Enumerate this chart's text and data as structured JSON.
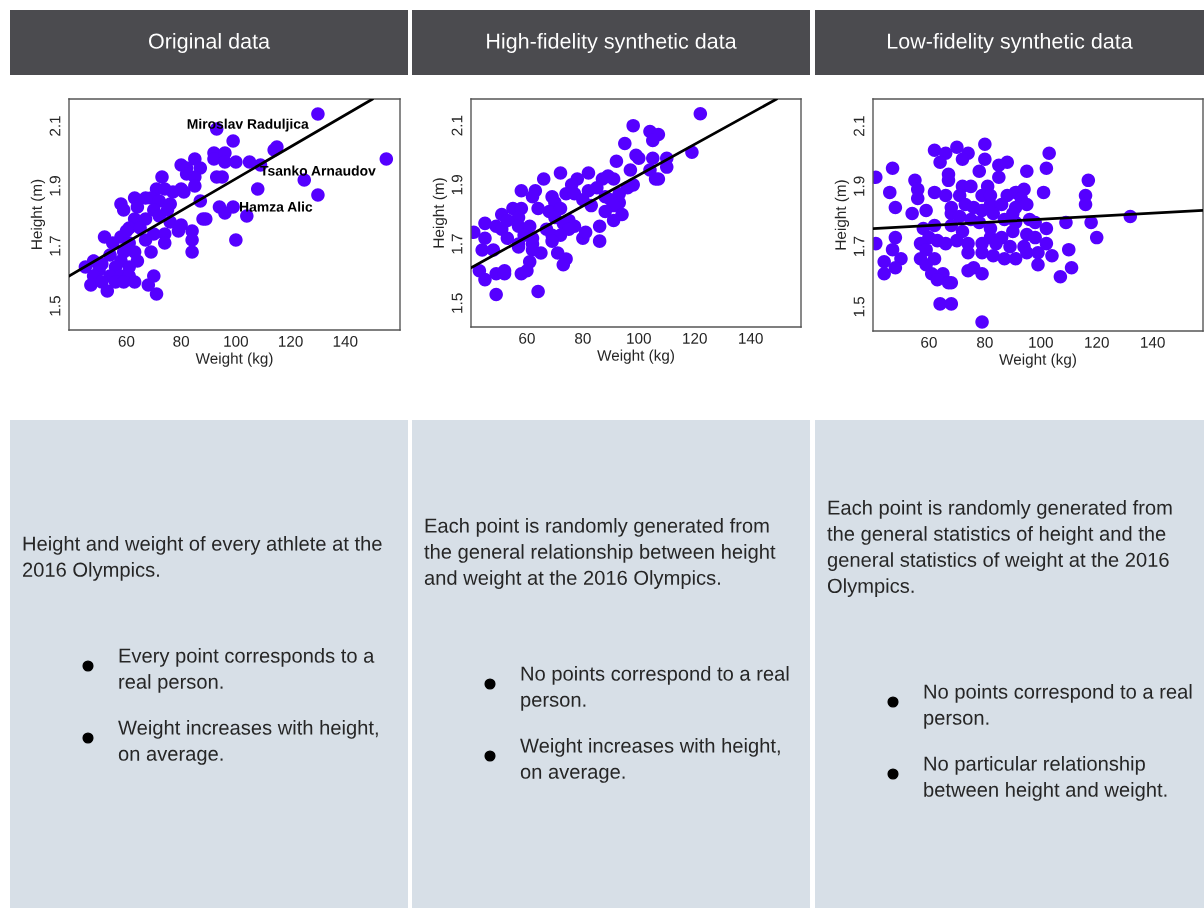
{
  "chart_data": [
    {
      "type": "scatter",
      "title": "Original data",
      "xlabel": "Weight (kg)",
      "ylabel": "Height (m)",
      "xlim": [
        39,
        160
      ],
      "ylim": [
        1.42,
        2.19
      ],
      "xticks": [
        60,
        80,
        100,
        120,
        140
      ],
      "yticks": [
        1.5,
        1.7,
        1.9,
        2.1
      ],
      "series": [
        {
          "marker": "circle",
          "color": "#5500ff",
          "x": [
            130,
            93,
            99,
            115,
            114,
            92,
            92,
            96,
            85,
            96,
            100,
            105,
            109,
            155,
            80,
            82,
            87,
            93,
            82,
            85,
            95,
            73,
            125,
            108,
            130,
            85,
            80,
            71,
            74,
            77,
            81,
            63,
            67,
            69,
            72,
            76,
            58,
            59,
            64,
            70,
            75,
            87,
            94,
            99,
            96,
            104,
            88,
            89,
            67,
            72,
            76,
            80,
            63,
            61,
            65,
            52,
            58,
            60,
            70,
            74,
            79,
            84,
            84,
            100,
            55,
            61,
            67,
            74,
            59,
            63,
            69,
            84,
            48,
            51,
            54,
            58,
            64,
            45,
            50,
            56,
            61,
            48,
            54,
            58,
            61,
            70,
            47,
            51,
            56,
            59,
            63,
            68,
            53,
            71
          ],
          "values": [
            2.14,
            2.09,
            2.05,
            2.03,
            2.02,
            2.01,
            1.99,
            2.01,
            1.99,
            1.98,
            1.98,
            1.98,
            1.97,
            1.99,
            1.97,
            1.96,
            1.96,
            1.93,
            1.94,
            1.93,
            1.93,
            1.93,
            1.92,
            1.89,
            1.87,
            1.9,
            1.89,
            1.89,
            1.89,
            1.88,
            1.88,
            1.86,
            1.86,
            1.86,
            1.85,
            1.84,
            1.84,
            1.82,
            1.83,
            1.82,
            1.82,
            1.85,
            1.83,
            1.83,
            1.81,
            1.8,
            1.79,
            1.79,
            1.79,
            1.8,
            1.78,
            1.77,
            1.79,
            1.76,
            1.76,
            1.73,
            1.73,
            1.75,
            1.74,
            1.74,
            1.75,
            1.75,
            1.72,
            1.72,
            1.71,
            1.71,
            1.72,
            1.71,
            1.68,
            1.68,
            1.68,
            1.68,
            1.65,
            1.64,
            1.67,
            1.65,
            1.65,
            1.63,
            1.62,
            1.63,
            1.63,
            1.6,
            1.6,
            1.6,
            1.6,
            1.6,
            1.57,
            1.58,
            1.58,
            1.58,
            1.58,
            1.57,
            1.55,
            1.54
          ]
        },
        {
          "type": "line",
          "color": "#000000",
          "x": [
            39,
            150
          ],
          "values": [
            1.6,
            2.19
          ]
        }
      ],
      "annotations": [
        "Miroslav Raduljica",
        "Tsanko Arnaudov",
        "Hamza Alic",
        "Height and weight of every athlete at the 2016 Olympics.",
        "Every point corresponds to a real person.",
        "Weight increases with height, on average."
      ]
    },
    {
      "type": "scatter",
      "title": "High-fidelity synthetic data",
      "xlabel": "Weight (kg)",
      "ylabel": "Height (m)",
      "xlim": [
        40,
        158
      ],
      "ylim": [
        1.42,
        2.19
      ],
      "xticks": [
        60,
        80,
        100,
        120,
        140
      ],
      "yticks": [
        1.5,
        1.7,
        1.9,
        2.1
      ],
      "series": [
        {
          "marker": "circle",
          "color": "#5500ff",
          "x": [
            122,
            98,
            104,
            107,
            105,
            95,
            119,
            99,
            100,
            105,
            110,
            92,
            110,
            97,
            104,
            72,
            82,
            66,
            78,
            87,
            89,
            91,
            106,
            107,
            76,
            98,
            96,
            58,
            63,
            82,
            85,
            74,
            77,
            93,
            62,
            69,
            80,
            88,
            90,
            93,
            70,
            83,
            55,
            58,
            64,
            68,
            72,
            91,
            88,
            51,
            57,
            53,
            70,
            75,
            94,
            91,
            49,
            45,
            57,
            61,
            73,
            77,
            41,
            51,
            67,
            75,
            86,
            53,
            59,
            62,
            69,
            72,
            80,
            81,
            45,
            57,
            62,
            69,
            86,
            44,
            48,
            57,
            62,
            65,
            71,
            74,
            61,
            73,
            43,
            52,
            49,
            52,
            58,
            60,
            45,
            49,
            64
          ],
          "values": [
            2.14,
            2.1,
            2.08,
            2.07,
            2.05,
            2.04,
            2.01,
            2.0,
            1.99,
            1.99,
            1.99,
            1.98,
            1.96,
            1.95,
            1.95,
            1.94,
            1.94,
            1.92,
            1.92,
            1.92,
            1.93,
            1.92,
            1.92,
            1.92,
            1.9,
            1.9,
            1.89,
            1.88,
            1.88,
            1.88,
            1.89,
            1.87,
            1.87,
            1.87,
            1.86,
            1.86,
            1.85,
            1.86,
            1.85,
            1.84,
            1.84,
            1.83,
            1.82,
            1.82,
            1.82,
            1.81,
            1.82,
            1.83,
            1.81,
            1.8,
            1.79,
            1.78,
            1.79,
            1.78,
            1.8,
            1.78,
            1.76,
            1.77,
            1.76,
            1.76,
            1.77,
            1.76,
            1.74,
            1.75,
            1.75,
            1.75,
            1.76,
            1.72,
            1.73,
            1.72,
            1.73,
            1.73,
            1.72,
            1.74,
            1.72,
            1.7,
            1.7,
            1.71,
            1.71,
            1.68,
            1.68,
            1.69,
            1.68,
            1.67,
            1.67,
            1.65,
            1.64,
            1.63,
            1.61,
            1.61,
            1.6,
            1.6,
            1.6,
            1.61,
            1.58,
            1.53,
            1.54
          ]
        },
        {
          "type": "line",
          "color": "#000000",
          "x": [
            40,
            149.3
          ],
          "values": [
            1.62,
            2.19
          ]
        }
      ],
      "annotations": [
        "Each point is randomly generated from the general relationship between height and weight at the 2016 Olympics.",
        "No points correspond to a real person.",
        "Weight increases with height, on average."
      ]
    },
    {
      "type": "scatter",
      "title": "Low-fidelity synthetic data",
      "xlabel": "Weight (kg)",
      "ylabel": "Height (m)",
      "xlim": [
        40,
        158
      ],
      "ylim": [
        1.42,
        2.19
      ],
      "xticks": [
        60,
        80,
        100,
        120,
        140
      ],
      "yticks": [
        1.5,
        1.7,
        1.9,
        2.1
      ],
      "series": [
        {
          "marker": "circle",
          "color": "#5500ff",
          "x": [
            80,
            70,
            62,
            103,
            66,
            74,
            64,
            72,
            80,
            85,
            88,
            47,
            67,
            78,
            95,
            102,
            41,
            55,
            67,
            85,
            117,
            72,
            75,
            81,
            94,
            46,
            56,
            62,
            91,
            101,
            71,
            79,
            66,
            56,
            82,
            88,
            93,
            116,
            73,
            76,
            68,
            82,
            86,
            91,
            95,
            116,
            48,
            59,
            79,
            54,
            68,
            71,
            75,
            83,
            90,
            78,
            87,
            96,
            98,
            132,
            109,
            118,
            58,
            62,
            68,
            72,
            82,
            91,
            102,
            90,
            95,
            60,
            82,
            86,
            98,
            120,
            48,
            41,
            57,
            63,
            66,
            70,
            74,
            79,
            84,
            89,
            94,
            102,
            47,
            59,
            74,
            79,
            95,
            110,
            83,
            87,
            91,
            99,
            104,
            57,
            62,
            50,
            44,
            59,
            48,
            99,
            111,
            74,
            76,
            79,
            44,
            61,
            65,
            63,
            67,
            68,
            107,
            64,
            68,
            79
          ],
          "values": [
            2.04,
            2.03,
            2.02,
            2.01,
            2.01,
            2.01,
            1.98,
            1.99,
            1.99,
            1.97,
            1.98,
            1.96,
            1.94,
            1.95,
            1.95,
            1.96,
            1.93,
            1.92,
            1.92,
            1.93,
            1.92,
            1.9,
            1.9,
            1.9,
            1.89,
            1.88,
            1.89,
            1.88,
            1.88,
            1.88,
            1.87,
            1.87,
            1.87,
            1.86,
            1.87,
            1.87,
            1.86,
            1.87,
            1.84,
            1.83,
            1.83,
            1.84,
            1.84,
            1.83,
            1.84,
            1.84,
            1.83,
            1.82,
            1.82,
            1.81,
            1.81,
            1.8,
            1.79,
            1.81,
            1.81,
            1.78,
            1.79,
            1.79,
            1.78,
            1.8,
            1.78,
            1.78,
            1.76,
            1.77,
            1.77,
            1.75,
            1.76,
            1.78,
            1.76,
            1.75,
            1.74,
            1.73,
            1.73,
            1.73,
            1.73,
            1.73,
            1.73,
            1.71,
            1.71,
            1.72,
            1.71,
            1.72,
            1.71,
            1.71,
            1.71,
            1.7,
            1.7,
            1.71,
            1.69,
            1.69,
            1.68,
            1.68,
            1.68,
            1.69,
            1.67,
            1.66,
            1.66,
            1.68,
            1.67,
            1.66,
            1.66,
            1.66,
            1.65,
            1.64,
            1.63,
            1.64,
            1.63,
            1.62,
            1.63,
            1.61,
            1.61,
            1.61,
            1.61,
            1.59,
            1.58,
            1.58,
            1.6,
            1.51,
            1.51,
            1.45
          ]
        },
        {
          "type": "line",
          "color": "#000000",
          "x": [
            40,
            158
          ],
          "values": [
            1.76,
            1.82
          ]
        }
      ],
      "annotations": [
        "Each point is randomly generated from the general statistics of height and the general statistics of weight at the 2016 Olympics.",
        "No points correspond to a real person.",
        "No particular relationship between height and weight."
      ]
    }
  ]
}
